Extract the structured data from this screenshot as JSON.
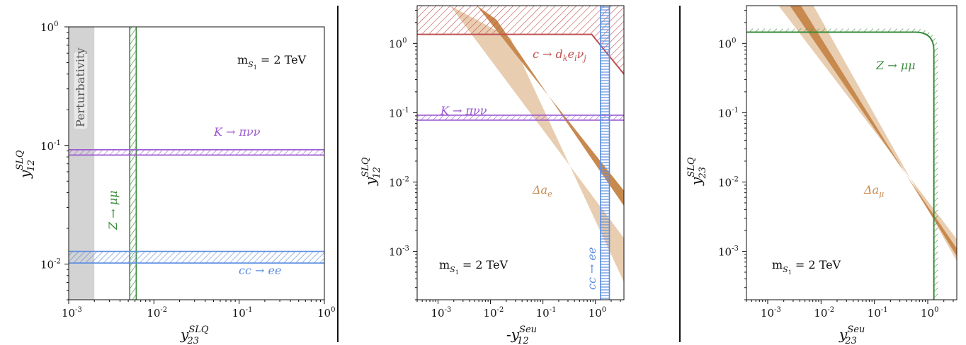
{
  "chart_data": [
    {
      "type": "area",
      "xscale": "log",
      "yscale": "log",
      "xlim": [
        0.001,
        1
      ],
      "ylim": [
        0.005,
        1
      ],
      "xlabel": {
        "base": "y",
        "sup": "SLQ",
        "sub": "23"
      },
      "ylabel": {
        "base": "y",
        "sup": "SLQ",
        "sub": "12"
      },
      "xticks": [
        {
          "v": 0.001,
          "exp": "-3"
        },
        {
          "v": 0.01,
          "exp": "-2"
        },
        {
          "v": 0.1,
          "exp": "-1"
        },
        {
          "v": 1,
          "exp": "0"
        }
      ],
      "yticks": [
        {
          "v": 0.01,
          "exp": "-2"
        },
        {
          "v": 0.1,
          "exp": "-1"
        },
        {
          "v": 1,
          "exp": "0"
        }
      ],
      "grid": false,
      "regions": [
        {
          "name": "Perturbativity",
          "kind": "solid",
          "x": [
            0.001,
            0.002
          ],
          "y": [
            0.005,
            1
          ],
          "color": "#d3d3d3"
        },
        {
          "name": "Z-mumu",
          "kind": "hatch-vertical",
          "x": [
            0.0052,
            0.0062
          ],
          "y": [
            0.005,
            1
          ],
          "color": "#3a8a3a"
        },
        {
          "name": "K-pinunu",
          "kind": "hatch-horizontal",
          "x": [
            0.001,
            1
          ],
          "y": [
            0.083,
            0.092
          ],
          "color": "#9b59d0"
        },
        {
          "name": "cc-ee",
          "kind": "hatch-horizontal",
          "x": [
            0.001,
            1
          ],
          "y": [
            0.0102,
            0.0128
          ],
          "color": "#5b8de0"
        }
      ],
      "annotations": {
        "mass": {
          "m": "m",
          "sub": "S",
          "subsub": "1",
          "eq": " = 2 TeV"
        },
        "perturbativity": "Perturbativity",
        "z": {
          "a": "Z",
          "arrow": " → ",
          "b": "μμ"
        },
        "k": {
          "a": "K",
          "arrow": " → ",
          "b": "πνν"
        },
        "cc": {
          "a": "cc",
          "arrow": " → ",
          "b": "ee"
        }
      }
    },
    {
      "type": "area",
      "xscale": "log",
      "yscale": "log",
      "xlim": [
        0.0004,
        3.5
      ],
      "ylim": [
        0.0002,
        3.5
      ],
      "xlabel": {
        "base": "y",
        "prefix": "-",
        "sup": "Seu",
        "sub": "12"
      },
      "ylabel": {
        "base": "y",
        "sup": "SLQ",
        "sub": "12"
      },
      "xticks": [
        {
          "v": 0.001,
          "exp": "-3"
        },
        {
          "v": 0.01,
          "exp": "-2"
        },
        {
          "v": 0.1,
          "exp": "-1"
        },
        {
          "v": 1,
          "exp": "0"
        }
      ],
      "yticks": [
        {
          "v": 0.001,
          "exp": "-3"
        },
        {
          "v": 0.01,
          "exp": "-2"
        },
        {
          "v": 0.1,
          "exp": "-1"
        },
        {
          "v": 1,
          "exp": "0"
        }
      ],
      "grid": false,
      "regions": [
        {
          "name": "delta-ae-outer",
          "kind": "band",
          "color": "#e8cdb0",
          "x": [
            0.0017,
            3.5,
            3.5,
            0.024
          ],
          "y": [
            3.5,
            0.00155,
            0.00036,
            1.2
          ]
        },
        {
          "name": "delta-ae-inner",
          "kind": "band",
          "color": "#c8894f",
          "x": [
            0.0055,
            3.5,
            3.5,
            0.013
          ],
          "y": [
            3.5,
            0.0075,
            0.0045,
            2.2
          ]
        },
        {
          "name": "c-dkeinu",
          "kind": "hatch-diagonal",
          "color": "#c05050",
          "x": [
            0.0004,
            0.85,
            3.5,
            3.5,
            0.0004
          ],
          "y": [
            1.35,
            1.35,
            0.36,
            3.5,
            3.5
          ]
        },
        {
          "name": "K-pinunu",
          "kind": "hatch-diagonal",
          "color": "#9b59d0",
          "x": [
            0.0004,
            3.5
          ],
          "y": [
            0.078,
            0.092
          ]
        },
        {
          "name": "cc-ee",
          "kind": "hatch-horizontal",
          "color": "#5b8de0",
          "x": [
            1.25,
            1.85
          ],
          "y": [
            0.0002,
            3.5
          ]
        }
      ],
      "annotations": {
        "mass": {
          "m": "m",
          "sub": "S",
          "subsub": "1",
          "eq": " = 2 TeV"
        },
        "c": {
          "a": "c",
          "arrow": " → ",
          "b": "d",
          "bsub": "k",
          "c": "e",
          "csub": "i",
          "d": "ν",
          "dsub": "j"
        },
        "k": {
          "a": "K",
          "arrow": " → ",
          "b": "πνν"
        },
        "delta": {
          "a": "Δa",
          "sub": "e"
        },
        "cc": {
          "a": "cc",
          "arrow": " → ",
          "b": "ee"
        }
      }
    },
    {
      "type": "area",
      "xscale": "log",
      "yscale": "log",
      "xlim": [
        0.0004,
        3.5
      ],
      "ylim": [
        0.0002,
        3.5
      ],
      "xlabel": {
        "base": "y",
        "sup": "Seu",
        "sub": "23"
      },
      "ylabel": {
        "base": "y",
        "sup": "SLQ",
        "sub": "23"
      },
      "xticks": [
        {
          "v": 0.001,
          "exp": "-3"
        },
        {
          "v": 0.01,
          "exp": "-2"
        },
        {
          "v": 0.1,
          "exp": "-1"
        },
        {
          "v": 1,
          "exp": "0"
        }
      ],
      "yticks": [
        {
          "v": 0.001,
          "exp": "-3"
        },
        {
          "v": 0.01,
          "exp": "-2"
        },
        {
          "v": 0.1,
          "exp": "-1"
        },
        {
          "v": 1,
          "exp": "0"
        }
      ],
      "grid": false,
      "regions": [
        {
          "name": "delta-amu-outer",
          "kind": "band",
          "color": "#e8cdb0",
          "x": [
            0.0016,
            3.5,
            3.5,
            0.0072
          ],
          "y": [
            3.5,
            0.0015,
            0.00072,
            3.5
          ]
        },
        {
          "name": "delta-amu-inner",
          "kind": "band",
          "color": "#c8894f",
          "x": [
            0.0026,
            3.5,
            3.5,
            0.0042
          ],
          "y": [
            3.5,
            0.0011,
            0.00085,
            3.5
          ]
        },
        {
          "name": "Z-mumu",
          "kind": "hatch-curve",
          "color": "#3a8a3a",
          "ylevel": 1.45,
          "ywidth": 0.18,
          "xlevel": 1.3,
          "xwidth": 0.25
        }
      ],
      "annotations": {
        "mass": {
          "m": "m",
          "sub": "S",
          "subsub": "1",
          "eq": " = 2 TeV"
        },
        "z": {
          "a": "Z",
          "arrow": " → ",
          "b": "μμ"
        },
        "delta": {
          "a": "Δa",
          "sub": "μ"
        }
      }
    }
  ]
}
